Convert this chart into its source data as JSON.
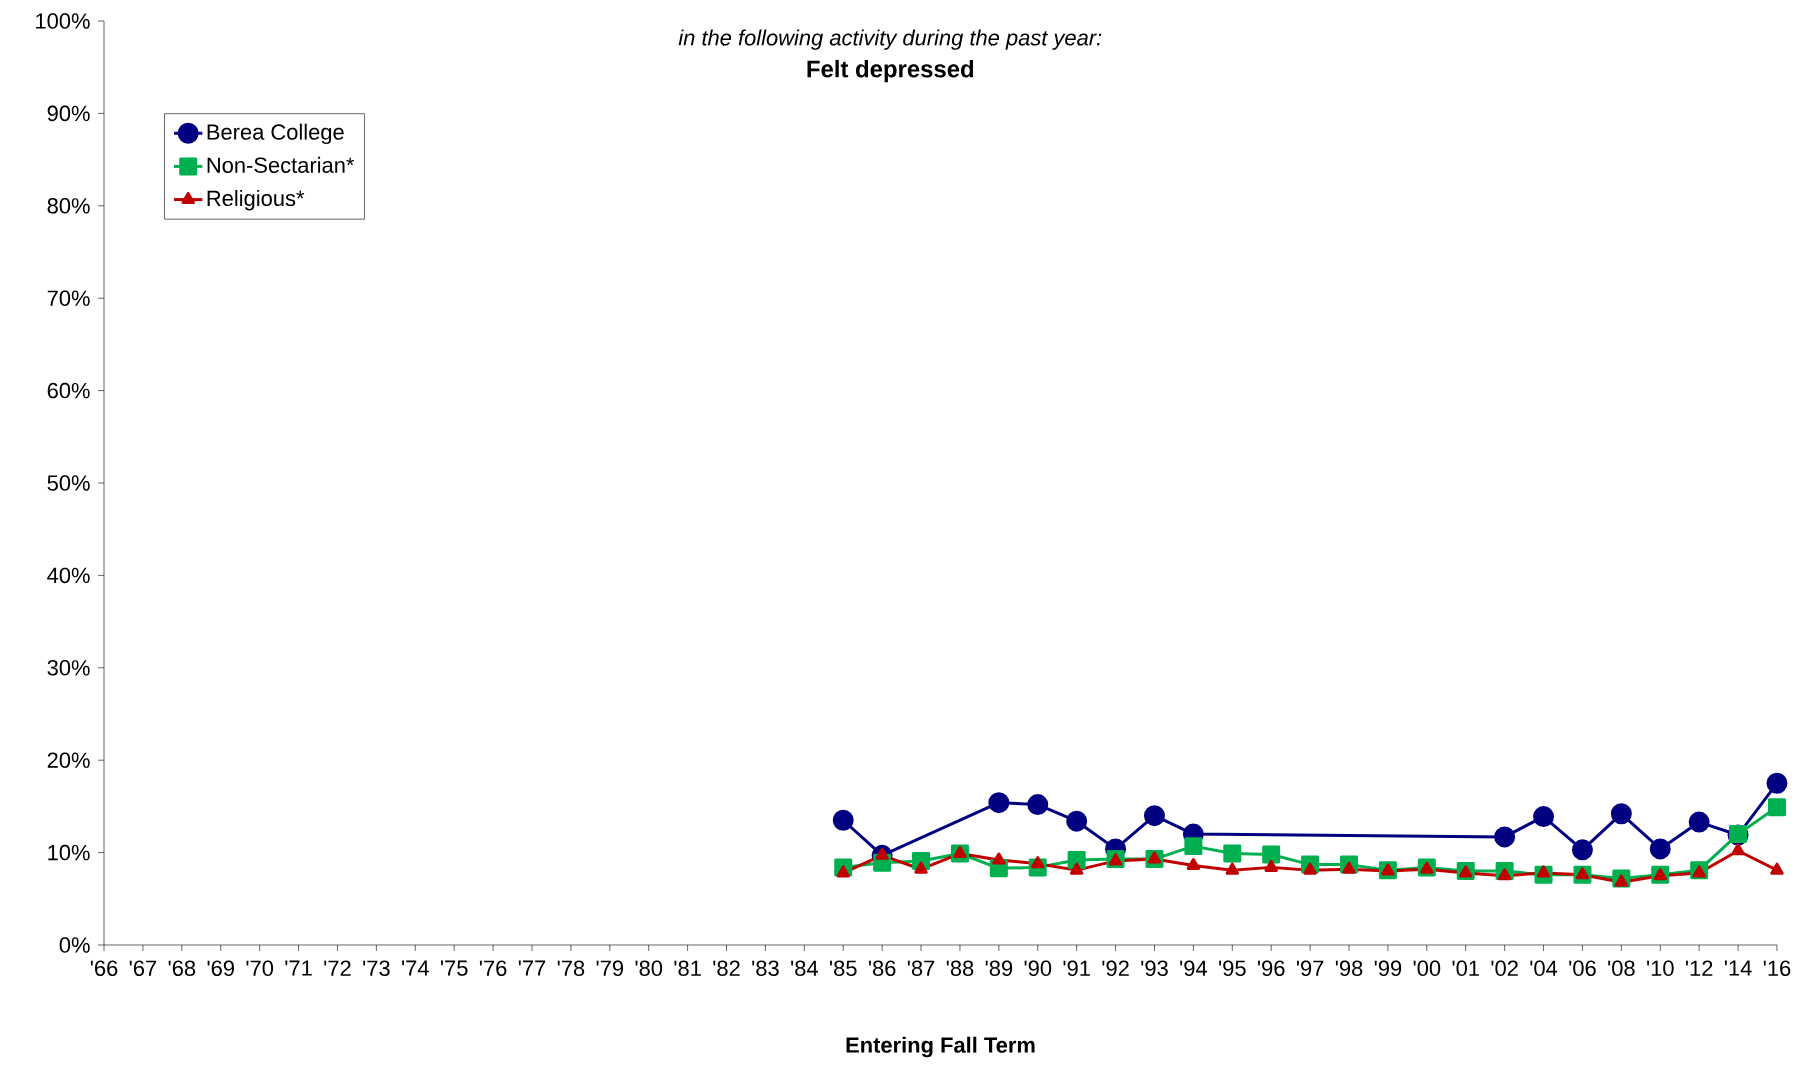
{
  "chart_data": {
    "type": "line",
    "subtitle": "in the following activity during the past year:",
    "title": "Felt depressed",
    "xlabel": "Entering Fall Term",
    "categories": [
      "'66",
      "'67",
      "'68",
      "'69",
      "'70",
      "'71",
      "'72",
      "'73",
      "'74",
      "'75",
      "'76",
      "'77",
      "'78",
      "'79",
      "'80",
      "'81",
      "'82",
      "'83",
      "'84",
      "'85",
      "'86",
      "'87",
      "'88",
      "'89",
      "'90",
      "'91",
      "'92",
      "'93",
      "'94",
      "'95",
      "'96",
      "'97",
      "'98",
      "'99",
      "'00",
      "'01",
      "'02",
      "'04",
      "'06",
      "'08",
      "'10",
      "'12",
      "'14",
      "'16"
    ],
    "series": [
      {
        "name": "Berea College",
        "color": "#000080",
        "marker": "circle",
        "values": [
          null,
          null,
          null,
          null,
          null,
          null,
          null,
          null,
          null,
          null,
          null,
          null,
          null,
          null,
          null,
          null,
          null,
          null,
          null,
          13.5,
          9.7,
          null,
          null,
          15.4,
          15.2,
          13.4,
          10.4,
          14.0,
          12.0,
          null,
          null,
          null,
          null,
          null,
          null,
          null,
          11.7,
          13.9,
          10.3,
          14.2,
          10.4,
          13.3,
          11.9,
          17.5
        ]
      },
      {
        "name": "Non-Sectarian*",
        "color": "#00b050",
        "marker": "square",
        "values": [
          null,
          null,
          null,
          null,
          null,
          null,
          null,
          null,
          null,
          null,
          null,
          null,
          null,
          null,
          null,
          null,
          null,
          null,
          null,
          8.4,
          8.9,
          9.1,
          9.9,
          8.3,
          8.4,
          9.2,
          9.3,
          9.3,
          10.7,
          9.9,
          9.8,
          8.7,
          8.7,
          8.1,
          8.4,
          8.0,
          8.0,
          7.6,
          7.6,
          7.2,
          7.6,
          8.1,
          12.0,
          14.9
        ]
      },
      {
        "name": "Religious*",
        "color": "#c00000",
        "marker": "triangle",
        "values": [
          null,
          null,
          null,
          null,
          null,
          null,
          null,
          null,
          null,
          null,
          null,
          null,
          null,
          null,
          null,
          null,
          null,
          null,
          null,
          7.8,
          9.7,
          8.2,
          9.9,
          9.2,
          8.8,
          8.1,
          9.1,
          9.3,
          8.6,
          8.1,
          8.4,
          8.1,
          8.2,
          8.0,
          8.2,
          7.8,
          7.5,
          7.8,
          7.6,
          6.8,
          7.5,
          7.8,
          10.2,
          8.1
        ]
      }
    ],
    "ylim": [
      0,
      100
    ],
    "yticks": [
      {
        "value": 0,
        "label": "0%"
      },
      {
        "value": 10,
        "label": "10%"
      },
      {
        "value": 20,
        "label": "20%"
      },
      {
        "value": 30,
        "label": "30%"
      },
      {
        "value": 40,
        "label": "40%"
      },
      {
        "value": 50,
        "label": "50%"
      },
      {
        "value": 60,
        "label": "60%"
      },
      {
        "value": 70,
        "label": "70%"
      },
      {
        "value": 80,
        "label": "80%"
      },
      {
        "value": 90,
        "label": "90%"
      },
      {
        "value": 100,
        "label": "100%"
      }
    ],
    "grid": false,
    "legend": "top left",
    "line_style": "solid"
  }
}
